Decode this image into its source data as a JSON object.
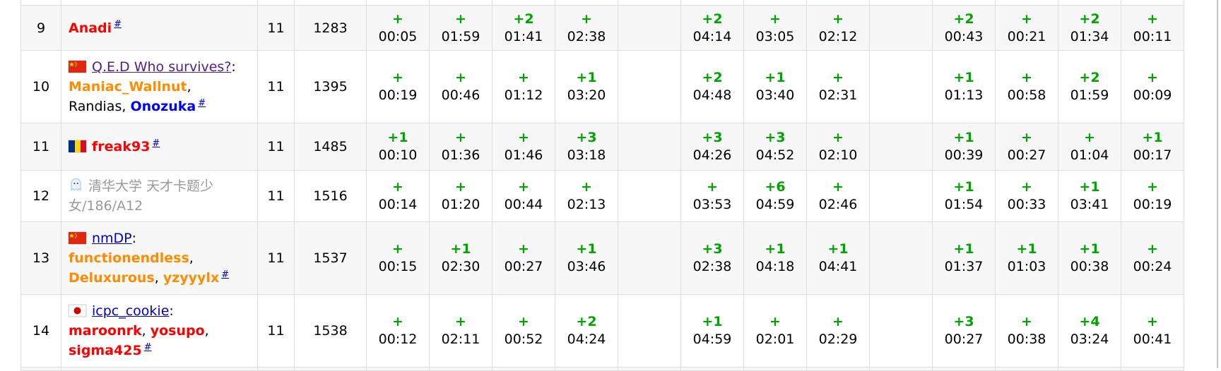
{
  "colors": {
    "accepted_green": "#00a400",
    "handle_red": "#ff0000",
    "handle_orange": "#ff8c00",
    "handle_blue": "#0000ff",
    "team_link_blue": "#0000cc",
    "team_link_visited": "#551a8b",
    "ghost_gray": "#999999",
    "row_stripe": "#f7f7f7",
    "grid_border": "#dddddd"
  },
  "table": {
    "problem_count": 13,
    "rows": [
      {
        "rank": "9",
        "flag": null,
        "name_parts": [
          {
            "text": "Anadi",
            "style": "handle-red"
          },
          {
            "text": "#",
            "style": "hash"
          }
        ],
        "solved": "11",
        "penalty": "1283",
        "problems": [
          {
            "verdict": "+",
            "time": "00:05"
          },
          {
            "verdict": "+",
            "time": "01:59"
          },
          {
            "verdict": "+2",
            "time": "01:41"
          },
          {
            "verdict": "+",
            "time": "02:38"
          },
          null,
          {
            "verdict": "+2",
            "time": "04:14"
          },
          {
            "verdict": "+",
            "time": "03:05"
          },
          {
            "verdict": "+",
            "time": "02:12"
          },
          null,
          {
            "verdict": "+2",
            "time": "00:43"
          },
          {
            "verdict": "+",
            "time": "00:21"
          },
          {
            "verdict": "+2",
            "time": "01:34"
          },
          {
            "verdict": "+",
            "time": "00:11"
          }
        ]
      },
      {
        "rank": "10",
        "flag": "china",
        "name_parts": [
          {
            "text": "Q.E.D Who survives?",
            "style": "team-visited"
          },
          {
            "text": ": ",
            "style": "plain"
          },
          {
            "text": "Maniac_Wallnut",
            "style": "handle-orange"
          },
          {
            "text": ", ",
            "style": "plain"
          },
          {
            "text": "Randias",
            "style": "handle-plain"
          },
          {
            "text": ", ",
            "style": "plain"
          },
          {
            "text": "Onozuka",
            "style": "handle-blue"
          },
          {
            "text": "#",
            "style": "hash"
          }
        ],
        "solved": "11",
        "penalty": "1395",
        "problems": [
          {
            "verdict": "+",
            "time": "00:19"
          },
          {
            "verdict": "+",
            "time": "00:46"
          },
          {
            "verdict": "+",
            "time": "01:12"
          },
          {
            "verdict": "+1",
            "time": "03:20"
          },
          null,
          {
            "verdict": "+2",
            "time": "04:48"
          },
          {
            "verdict": "+1",
            "time": "03:40"
          },
          {
            "verdict": "+",
            "time": "02:31"
          },
          null,
          {
            "verdict": "+1",
            "time": "01:13"
          },
          {
            "verdict": "+",
            "time": "00:58"
          },
          {
            "verdict": "+2",
            "time": "01:59"
          },
          {
            "verdict": "+",
            "time": "00:09"
          }
        ]
      },
      {
        "rank": "11",
        "flag": "romania",
        "name_parts": [
          {
            "text": "freak93",
            "style": "handle-red"
          },
          {
            "text": "#",
            "style": "hash"
          }
        ],
        "solved": "11",
        "penalty": "1485",
        "problems": [
          {
            "verdict": "+1",
            "time": "00:10"
          },
          {
            "verdict": "+",
            "time": "01:36"
          },
          {
            "verdict": "+",
            "time": "01:46"
          },
          {
            "verdict": "+3",
            "time": "03:18"
          },
          null,
          {
            "verdict": "+3",
            "time": "04:26"
          },
          {
            "verdict": "+3",
            "time": "04:52"
          },
          {
            "verdict": "+",
            "time": "02:10"
          },
          null,
          {
            "verdict": "+1",
            "time": "00:39"
          },
          {
            "verdict": "+",
            "time": "00:27"
          },
          {
            "verdict": "+",
            "time": "01:04"
          },
          {
            "verdict": "+1",
            "time": "00:17"
          }
        ]
      },
      {
        "rank": "12",
        "flag": "ghost",
        "name_parts": [
          {
            "text": "清华大学 天才卡题少女/186/A12",
            "style": "ghost"
          }
        ],
        "solved": "11",
        "penalty": "1516",
        "problems": [
          {
            "verdict": "+",
            "time": "00:14"
          },
          {
            "verdict": "+",
            "time": "01:20"
          },
          {
            "verdict": "+",
            "time": "00:44"
          },
          {
            "verdict": "+",
            "time": "02:13"
          },
          null,
          {
            "verdict": "+",
            "time": "03:53"
          },
          {
            "verdict": "+6",
            "time": "04:59"
          },
          {
            "verdict": "+",
            "time": "02:46"
          },
          null,
          {
            "verdict": "+1",
            "time": "01:54"
          },
          {
            "verdict": "+",
            "time": "00:33"
          },
          {
            "verdict": "+1",
            "time": "03:41"
          },
          {
            "verdict": "+",
            "time": "00:19"
          }
        ]
      },
      {
        "rank": "13",
        "flag": "china",
        "name_parts": [
          {
            "text": "nmDP",
            "style": "team-link"
          },
          {
            "text": ": ",
            "style": "plain"
          },
          {
            "text": "functionendless",
            "style": "handle-orange"
          },
          {
            "text": ", ",
            "style": "plain"
          },
          {
            "text": "Deluxurous",
            "style": "handle-orange"
          },
          {
            "text": ", ",
            "style": "plain"
          },
          {
            "text": "yzyyylx",
            "style": "handle-orange"
          },
          {
            "text": "#",
            "style": "hash"
          }
        ],
        "solved": "11",
        "penalty": "1537",
        "problems": [
          {
            "verdict": "+",
            "time": "00:15"
          },
          {
            "verdict": "+1",
            "time": "02:30"
          },
          {
            "verdict": "+",
            "time": "00:27"
          },
          {
            "verdict": "+1",
            "time": "03:46"
          },
          null,
          {
            "verdict": "+3",
            "time": "02:38"
          },
          {
            "verdict": "+1",
            "time": "04:18"
          },
          {
            "verdict": "+1",
            "time": "04:41"
          },
          null,
          {
            "verdict": "+1",
            "time": "01:37"
          },
          {
            "verdict": "+1",
            "time": "01:03"
          },
          {
            "verdict": "+1",
            "time": "00:38"
          },
          {
            "verdict": "+",
            "time": "00:24"
          }
        ]
      },
      {
        "rank": "14",
        "flag": "japan",
        "name_parts": [
          {
            "text": "icpc_cookie",
            "style": "team-link"
          },
          {
            "text": ": ",
            "style": "plain"
          },
          {
            "text": "maroonrk",
            "style": "handle-red"
          },
          {
            "text": ", ",
            "style": "plain"
          },
          {
            "text": "yosupo",
            "style": "handle-red"
          },
          {
            "text": ", ",
            "style": "plain"
          },
          {
            "text": "sigma425",
            "style": "handle-red"
          },
          {
            "text": "#",
            "style": "hash"
          }
        ],
        "solved": "11",
        "penalty": "1538",
        "problems": [
          {
            "verdict": "+",
            "time": "00:12"
          },
          {
            "verdict": "+",
            "time": "02:11"
          },
          {
            "verdict": "+",
            "time": "00:52"
          },
          {
            "verdict": "+2",
            "time": "04:24"
          },
          null,
          {
            "verdict": "+1",
            "time": "04:59"
          },
          {
            "verdict": "+",
            "time": "02:01"
          },
          {
            "verdict": "+",
            "time": "02:29"
          },
          null,
          {
            "verdict": "+3",
            "time": "00:27"
          },
          {
            "verdict": "+",
            "time": "00:38"
          },
          {
            "verdict": "+4",
            "time": "03:24"
          },
          {
            "verdict": "+",
            "time": "00:41"
          }
        ]
      }
    ]
  }
}
